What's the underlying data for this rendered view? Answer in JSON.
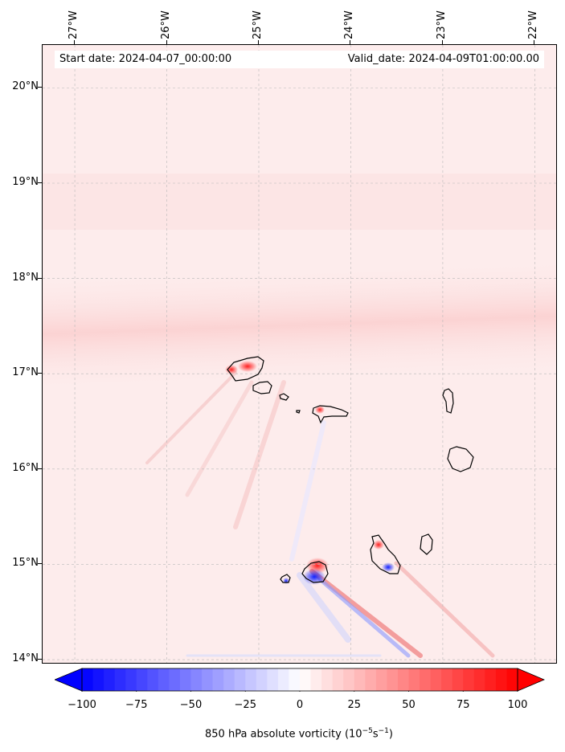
{
  "header": {
    "start_date": "Start date: 2024-04-07_00:00:00",
    "valid_date": "Valid_date: 2024-04-09T01:00:00.00"
  },
  "map": {
    "lon_ticks": [
      "27°W",
      "26°W",
      "25°W",
      "24°W",
      "23°W",
      "22°W"
    ],
    "lat_ticks": [
      "20°N",
      "19°N",
      "18°N",
      "17°N",
      "16°N",
      "15°N",
      "14°N"
    ],
    "lon_values": [
      -27,
      -26,
      -25,
      -24,
      -23,
      -22
    ],
    "lat_values": [
      20,
      19,
      18,
      17,
      16,
      15,
      14
    ],
    "lon_range": [
      -27.35,
      -21.75
    ],
    "lat_range": [
      13.95,
      20.45
    ],
    "gridlines": true,
    "background_field_color": "#fde6e6",
    "islands": [
      "Santo Antão",
      "São Vicente",
      "Santa Luzia",
      "São Nicolau",
      "Sal",
      "Boa Vista",
      "Maio",
      "Santiago",
      "Fogo",
      "Brava"
    ]
  },
  "colorbar": {
    "tick_labels": [
      "−100",
      "−75",
      "−50",
      "−25",
      "0",
      "25",
      "50",
      "75",
      "100"
    ],
    "tick_values": [
      -100,
      -75,
      -50,
      -25,
      0,
      25,
      50,
      75,
      100
    ],
    "range": [
      -100,
      100
    ],
    "extend": "both",
    "colormap": "bwr",
    "color_min": "#0000ff",
    "color_mid": "#ffffff",
    "color_max": "#ff0000",
    "title_prefix": "850 hPa absolute vorticity (10",
    "title_exp1": "−5",
    "title_mid": "s",
    "title_exp2": "−1",
    "title_suffix": ")"
  }
}
